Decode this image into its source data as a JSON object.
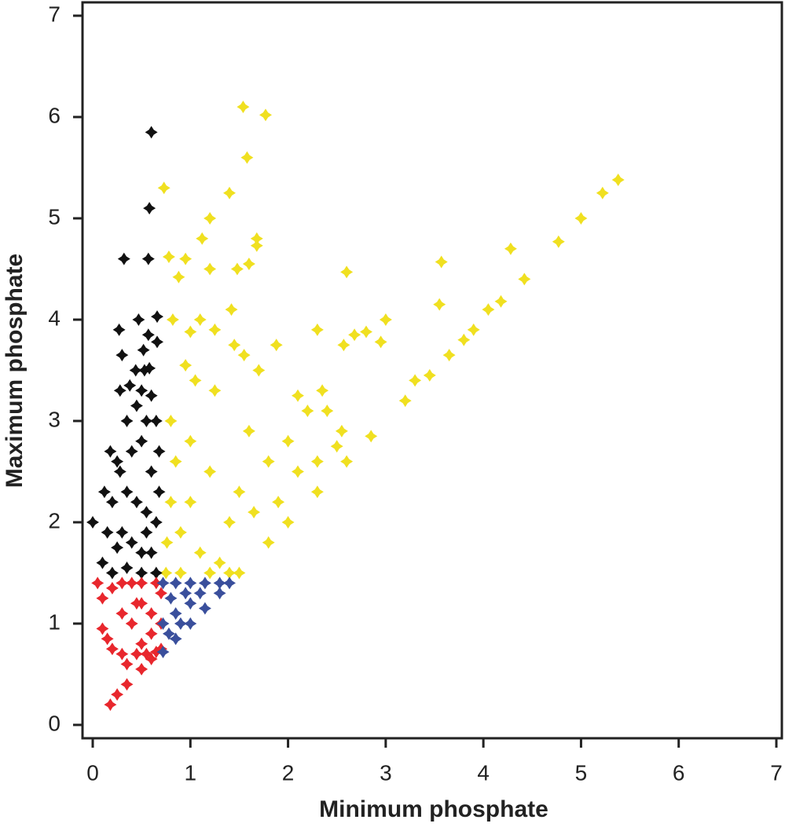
{
  "chart_data": {
    "type": "scatter",
    "x_label": "Minimum phosphate",
    "y_label": "Maximum phosphate",
    "xlim": [
      0,
      7
    ],
    "ylim": [
      0,
      7
    ],
    "xticks": [
      0,
      1,
      2,
      3,
      4,
      5,
      6,
      7
    ],
    "yticks": [
      0,
      1,
      2,
      3,
      4,
      5,
      6,
      7
    ],
    "grid": false,
    "series": [
      {
        "color": "#f0e020",
        "x": [
          1.54,
          1.77,
          1.58,
          0.73,
          1.4,
          1.2,
          1.12,
          1.68,
          1.68,
          0.78,
          0.95,
          1.6,
          1.48,
          1.2,
          0.88,
          2.6,
          3.57,
          4.28,
          4.77,
          5.0,
          5.22,
          5.38,
          4.42,
          4.18,
          4.05,
          3.55,
          3.0,
          2.95,
          2.8,
          2.68,
          2.3,
          2.57,
          1.42,
          1.88,
          1.45,
          1.55,
          0.82,
          1.1,
          1.25,
          1.0,
          1.7,
          0.95,
          1.05,
          1.25,
          2.1,
          2.35,
          2.2,
          2.4,
          2.55,
          3.2,
          3.3,
          3.45,
          3.65,
          3.8,
          3.9,
          2.85,
          2.6,
          2.3,
          2.0,
          1.8,
          1.5,
          1.0,
          1.2,
          1.5,
          1.8,
          2.1,
          0.8,
          0.9,
          1.1,
          1.3,
          0.75,
          0.9,
          1.2,
          1.4,
          0.8,
          1.6,
          2.0,
          2.5,
          1.0,
          1.4,
          0.76,
          0.85,
          1.65,
          1.9,
          2.3
        ],
        "values": [
          6.1,
          6.02,
          5.6,
          5.3,
          5.25,
          5.0,
          4.8,
          4.8,
          4.73,
          4.62,
          4.6,
          4.55,
          4.5,
          4.5,
          4.42,
          4.47,
          4.57,
          4.7,
          4.77,
          5.0,
          5.25,
          5.38,
          4.4,
          4.18,
          4.1,
          4.15,
          4.0,
          3.78,
          3.88,
          3.85,
          3.9,
          3.75,
          4.1,
          3.75,
          3.75,
          3.65,
          4.0,
          4.0,
          3.9,
          3.88,
          3.5,
          3.55,
          3.4,
          3.3,
          3.25,
          3.3,
          3.1,
          3.1,
          2.9,
          3.2,
          3.4,
          3.45,
          3.65,
          3.8,
          3.9,
          2.85,
          2.6,
          2.3,
          2.0,
          1.8,
          1.5,
          2.8,
          2.5,
          2.3,
          2.6,
          2.5,
          2.2,
          1.9,
          1.7,
          1.6,
          1.5,
          1.5,
          1.5,
          1.5,
          3.0,
          2.9,
          2.8,
          2.75,
          2.2,
          2.0,
          1.8,
          2.6,
          2.1,
          2.2,
          2.6
        ]
      },
      {
        "color": "#111111",
        "x": [
          0.6,
          0.58,
          0.32,
          0.57,
          0.66,
          0.47,
          0.27,
          0.57,
          0.66,
          0.52,
          0.3,
          0.58,
          0.44,
          0.53,
          0.28,
          0.38,
          0.5,
          0.6,
          0.45,
          0.35,
          0.55,
          0.65,
          0.18,
          0.25,
          0.4,
          0.5,
          0.6,
          0.28,
          0.12,
          0.2,
          0.35,
          0.45,
          0.55,
          0.65,
          0.0,
          0.15,
          0.3,
          0.4,
          0.5,
          0.6,
          0.1,
          0.2,
          0.35,
          0.5,
          0.65,
          0.25,
          0.55,
          0.68,
          0.68
        ],
        "values": [
          5.85,
          5.1,
          4.6,
          4.6,
          4.03,
          4.0,
          3.9,
          3.85,
          3.78,
          3.7,
          3.65,
          3.52,
          3.5,
          3.5,
          3.3,
          3.35,
          3.3,
          3.25,
          3.15,
          3.0,
          3.0,
          3.0,
          2.7,
          2.6,
          2.7,
          2.8,
          2.5,
          2.5,
          2.3,
          2.2,
          2.3,
          2.2,
          2.1,
          2.0,
          2.0,
          1.9,
          1.9,
          1.8,
          1.7,
          1.7,
          1.6,
          1.5,
          1.55,
          1.5,
          1.5,
          1.75,
          1.9,
          2.3,
          2.7
        ]
      },
      {
        "color": "#e8272d",
        "x": [
          0.05,
          0.1,
          0.2,
          0.3,
          0.4,
          0.5,
          0.65,
          0.1,
          0.15,
          0.2,
          0.3,
          0.35,
          0.45,
          0.5,
          0.6,
          0.7,
          0.4,
          0.3,
          0.5,
          0.6,
          0.7,
          0.25,
          0.18,
          0.35,
          0.5,
          0.6,
          0.7,
          0.45,
          0.55,
          0.65
        ],
        "values": [
          1.4,
          1.25,
          1.35,
          1.4,
          1.4,
          1.4,
          1.4,
          0.95,
          0.85,
          0.75,
          0.7,
          0.6,
          0.7,
          0.8,
          0.9,
          1.0,
          1.0,
          1.1,
          1.2,
          1.1,
          1.3,
          0.3,
          0.2,
          0.4,
          0.55,
          0.65,
          0.75,
          1.2,
          0.7,
          0.72
        ]
      },
      {
        "color": "#3a4f9c",
        "x": [
          0.72,
          0.72,
          0.72,
          0.85,
          0.85,
          0.85,
          1.0,
          1.0,
          1.0,
          1.15,
          1.15,
          1.3,
          1.3,
          1.4,
          0.8,
          0.95,
          1.1,
          0.78,
          0.9
        ],
        "values": [
          0.72,
          1.0,
          1.4,
          0.85,
          1.1,
          1.4,
          1.0,
          1.2,
          1.4,
          1.15,
          1.4,
          1.3,
          1.4,
          1.4,
          1.25,
          1.3,
          1.3,
          0.9,
          1.0
        ]
      }
    ]
  }
}
